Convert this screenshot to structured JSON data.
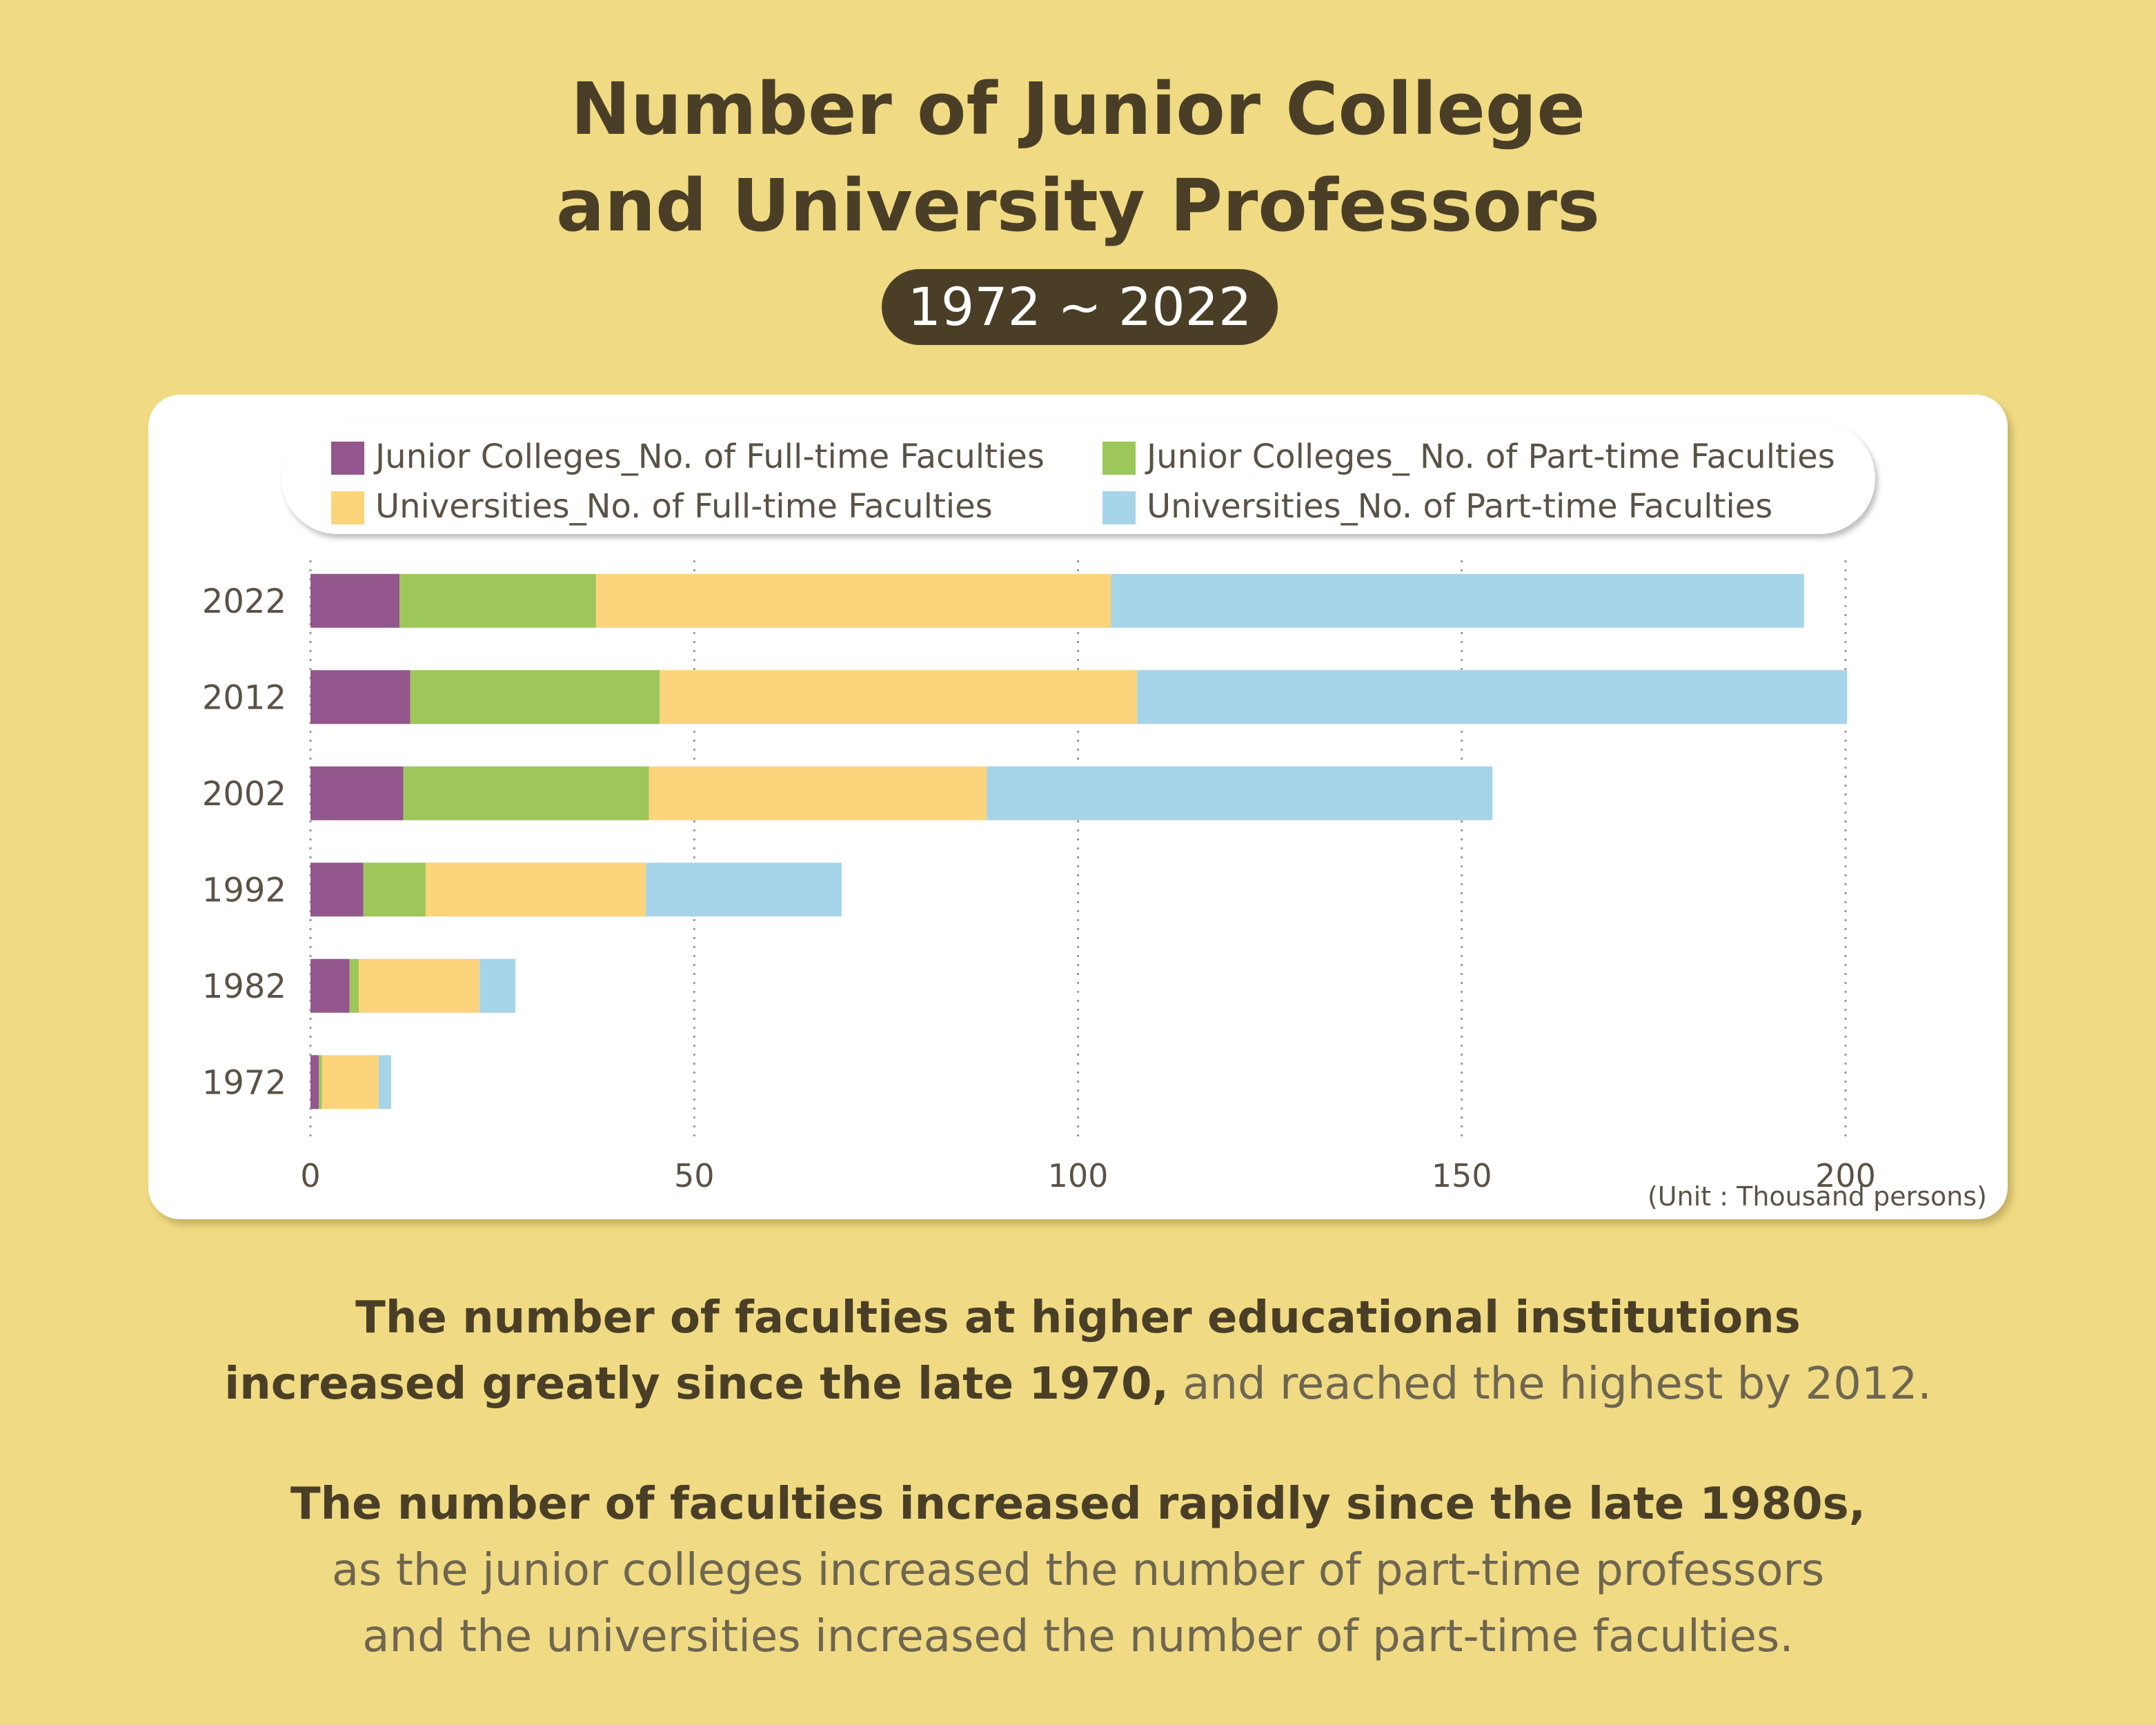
{
  "title": {
    "line1": "Number of Junior College",
    "line2": "and University Professors"
  },
  "subtitle": "1972 ~ 2022",
  "colors": {
    "jc_full": "#93578e",
    "jc_part": "#9dc75a",
    "uni_full": "#fcd47c",
    "uni_part": "#a6d4e9"
  },
  "chart_data": {
    "type": "bar",
    "orientation": "horizontal",
    "stacked": true,
    "categories": [
      "2022",
      "2012",
      "2002",
      "1992",
      "1982",
      "1972"
    ],
    "series": [
      {
        "name": "Junior Colleges_No. of Full-time Faculties",
        "values": [
          11.6,
          13.0,
          12.1,
          6.9,
          5.1,
          1.1
        ]
      },
      {
        "name": "Junior Colleges_ No. of Part-time Faculties",
        "values": [
          25.6,
          32.5,
          32.0,
          8.1,
          1.2,
          0.4
        ]
      },
      {
        "name": "Universities_No. of Full-time Faculties",
        "values": [
          67.1,
          62.2,
          44.0,
          28.7,
          15.7,
          7.4
        ]
      },
      {
        "name": "Universities_No. of Part-time Faculties",
        "values": [
          90.3,
          92.5,
          65.9,
          25.5,
          4.7,
          1.6
        ]
      }
    ],
    "xlim": [
      0,
      200
    ],
    "xticks": [
      "0",
      "50",
      "100",
      "150",
      "200"
    ],
    "unit": "(Unit : Thousand persons)",
    "grid": "vertical dotted",
    "legend": "top"
  },
  "text": {
    "p1_bold1": "The number of faculties at higher educational institutions",
    "p1_bold2": "increased greatly since the late 1970,",
    "p1_light": " and reached the highest by 2012.",
    "p2_bold": "The number of faculties increased rapidly since the late 1980s,",
    "p2_light1": "as the junior colleges increased the number of part-time professors",
    "p2_light2": "and the universities increased the number of part-time faculties."
  }
}
